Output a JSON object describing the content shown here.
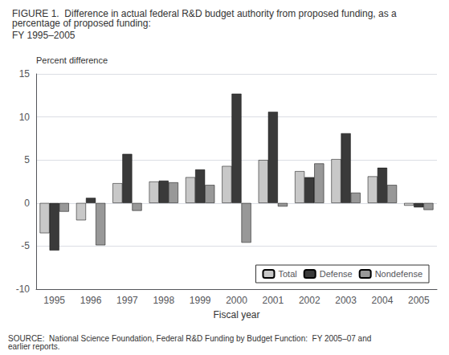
{
  "chart_data": {
    "type": "bar",
    "title": "FIGURE 1.  Difference in actual federal R&D budget authority from proposed funding, as a percentage of proposed funding:",
    "subtitle": "FY 1995–2005",
    "ylabel": "Percent difference",
    "xlabel": "Fiscal year",
    "annotations": [
      "SOURCE:  National Science Foundation, Federal R&D Funding by Budget Function:  FY 2005–07 and earlier reports."
    ],
    "categories": [
      "1995",
      "1996",
      "1997",
      "1998",
      "1999",
      "2000",
      "2001",
      "2002",
      "2003",
      "2004",
      "2005"
    ],
    "series": [
      {
        "name": "Total",
        "color": "#c8c8c8",
        "values": [
          -3.5,
          -2.0,
          2.3,
          2.5,
          3.0,
          4.3,
          5.0,
          3.7,
          5.1,
          3.1,
          -0.3
        ]
      },
      {
        "name": "Defense",
        "color": "#3a3a3a",
        "values": [
          -5.5,
          0.6,
          5.7,
          2.6,
          3.9,
          12.7,
          10.6,
          3.0,
          8.1,
          4.1,
          -0.5
        ]
      },
      {
        "name": "Nondefense",
        "color": "#989898",
        "values": [
          -1.0,
          -4.9,
          -0.9,
          2.4,
          2.1,
          -4.6,
          -0.4,
          4.6,
          1.2,
          2.1,
          -0.8
        ]
      }
    ],
    "ylim": [
      -10,
      15
    ],
    "yticks": [
      -10,
      -5,
      0,
      5,
      10,
      15
    ],
    "grid": true,
    "legend": "lower right"
  }
}
